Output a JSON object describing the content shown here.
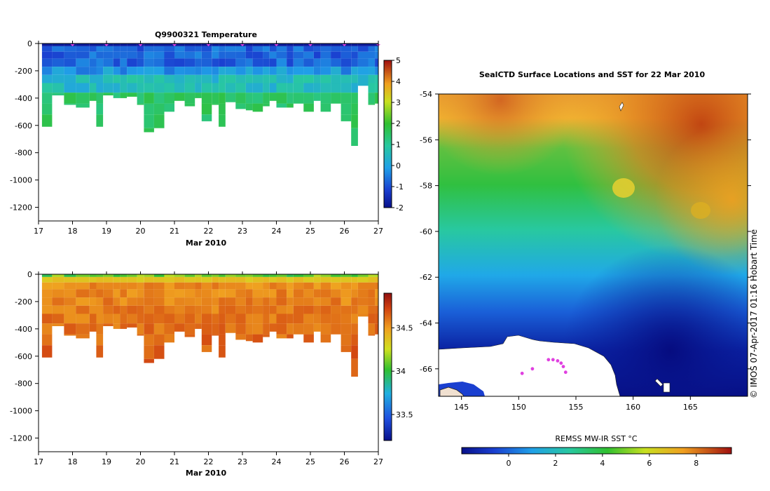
{
  "chart_data": [
    {
      "type": "heatmap",
      "title": "Q9900321  Temperature",
      "xlabel": "Mar 2010",
      "ylabel": "",
      "x_ticks": [
        "17",
        "18",
        "19",
        "20",
        "21",
        "22",
        "23",
        "24",
        "25",
        "26",
        "27"
      ],
      "x_range": [
        17,
        27
      ],
      "y_ticks": [
        "0",
        "-200",
        "-400",
        "-600",
        "-800",
        "-1000",
        "-1200"
      ],
      "y_range": [
        -1300,
        0
      ],
      "colorbar_ticks": [
        "5",
        "4",
        "3",
        "2",
        "1",
        "0",
        "-1",
        "-2"
      ],
      "colorbar_range": [
        -2,
        5
      ],
      "profile_days": [
        17.1,
        17.4,
        17.75,
        18.1,
        18.5,
        18.7,
        18.9,
        19.2,
        19.4,
        19.6,
        19.9,
        20.1,
        20.4,
        20.7,
        21.0,
        21.3,
        21.6,
        21.8,
        22.1,
        22.3,
        22.5,
        22.8,
        23.1,
        23.3,
        23.6,
        23.8,
        24.0,
        24.3,
        24.5,
        24.8,
        25.1,
        25.3,
        25.6,
        25.9,
        26.2,
        26.4,
        26.7,
        26.9
      ],
      "profile_max_depth": [
        610,
        380,
        450,
        470,
        420,
        610,
        380,
        400,
        400,
        390,
        450,
        650,
        620,
        500,
        420,
        460,
        400,
        570,
        450,
        610,
        430,
        480,
        490,
        500,
        460,
        420,
        470,
        470,
        440,
        500,
        420,
        500,
        440,
        570,
        750,
        310,
        450,
        440
      ],
      "surface_markers": [
        18,
        19,
        20,
        21,
        22,
        23,
        24,
        25,
        26,
        27
      ]
    },
    {
      "type": "heatmap",
      "title": "",
      "xlabel": "Mar 2010",
      "x_ticks": [
        "17",
        "18",
        "19",
        "20",
        "21",
        "22",
        "23",
        "24",
        "25",
        "26",
        "27"
      ],
      "x_range": [
        17,
        27
      ],
      "y_ticks": [
        "0",
        "-200",
        "-400",
        "-600",
        "-800",
        "-1000",
        "-1200"
      ],
      "y_range": [
        -1300,
        0
      ],
      "colorbar_ticks": [
        "34.5",
        "34",
        "33.5"
      ],
      "colorbar_range": [
        33.2,
        34.9
      ]
    },
    {
      "type": "heatmap",
      "title": "SealCTD Surface Locations and SST for 22 Mar 2010",
      "xlabel": "",
      "ylabel": "",
      "x_ticks": [
        "145",
        "150",
        "155",
        "160",
        "165"
      ],
      "x_range": [
        143,
        170
      ],
      "y_ticks": [
        "-54",
        "-56",
        "-58",
        "-60",
        "-62",
        "-64",
        "-66"
      ],
      "y_range": [
        -67.2,
        -54
      ],
      "colorbar_label": "REMSS MW-IR SST °C",
      "colorbar_ticks": [
        "0",
        "2",
        "4",
        "6",
        "8"
      ],
      "colorbar_range": [
        -2,
        9.5
      ],
      "sst_gradient_by_latitude": [
        {
          "lat": -54.5,
          "sst": 7.5
        },
        {
          "lat": -56,
          "sst": 5.5
        },
        {
          "lat": -58,
          "sst": 4
        },
        {
          "lat": -60,
          "sst": 3
        },
        {
          "lat": -62,
          "sst": 1.8
        },
        {
          "lat": -64,
          "sst": 0
        },
        {
          "lat": -66,
          "sst": -1
        }
      ],
      "track_points": [
        {
          "lon": 152.6,
          "lat": -65.6
        },
        {
          "lon": 153.0,
          "lat": -65.6
        },
        {
          "lon": 153.4,
          "lat": -65.65
        },
        {
          "lon": 153.7,
          "lat": -65.75
        },
        {
          "lon": 153.9,
          "lat": -65.9
        },
        {
          "lon": 154.1,
          "lat": -66.15
        },
        {
          "lon": 150.3,
          "lat": -66.2
        },
        {
          "lon": 151.2,
          "lat": -66.0
        }
      ]
    }
  ],
  "credit": "© IMOS 07-Apr-2017 01:16 Hobart Time",
  "colors": {
    "marker": "#e040e0",
    "land": "#ffffff",
    "land_edge": "#202020"
  }
}
